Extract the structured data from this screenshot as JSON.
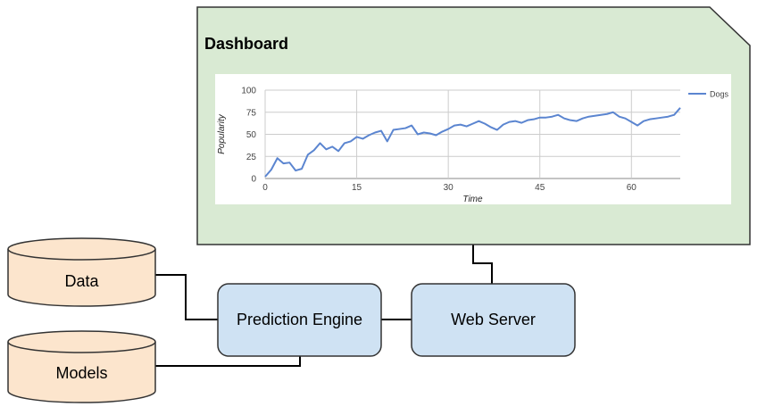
{
  "dashboard": {
    "title": "Dashboard",
    "colors": {
      "fill": "#d9ead3",
      "stroke": "#333333"
    }
  },
  "nodes": {
    "data": "Data",
    "models": "Models",
    "prediction_engine": "Prediction Engine",
    "web_server": "Web Server",
    "colors": {
      "database_fill": "#fce5cd",
      "process_fill": "#cfe2f3",
      "stroke": "#333333"
    }
  },
  "chart_data": {
    "type": "line",
    "title": "",
    "xlabel": "Time",
    "ylabel": "Popularity",
    "xlim": [
      0,
      68
    ],
    "ylim": [
      0,
      100
    ],
    "x_ticks": [
      0,
      15,
      30,
      45,
      60
    ],
    "y_ticks": [
      0,
      25,
      50,
      75,
      100
    ],
    "grid": true,
    "legend_position": "right",
    "series": [
      {
        "name": "Dogs",
        "color": "#5b85d0",
        "x": [
          0,
          1,
          2,
          3,
          4,
          5,
          6,
          7,
          8,
          9,
          10,
          11,
          12,
          13,
          14,
          15,
          16,
          17,
          18,
          19,
          20,
          21,
          22,
          23,
          24,
          25,
          26,
          27,
          28,
          29,
          30,
          31,
          32,
          33,
          34,
          35,
          36,
          37,
          38,
          39,
          40,
          41,
          42,
          43,
          44,
          45,
          46,
          47,
          48,
          49,
          50,
          51,
          52,
          53,
          54,
          55,
          56,
          57,
          58,
          59,
          60,
          61,
          62,
          63,
          64,
          65,
          66,
          67,
          68
        ],
        "values": [
          2,
          10,
          23,
          17,
          18,
          9,
          11,
          27,
          32,
          40,
          33,
          36,
          31,
          40,
          42,
          47,
          45,
          49,
          52,
          54,
          42,
          55,
          56,
          57,
          60,
          50,
          52,
          51,
          49,
          53,
          56,
          60,
          61,
          59,
          62,
          65,
          62,
          58,
          55,
          61,
          64,
          65,
          63,
          66,
          67,
          69,
          69,
          70,
          72,
          68,
          66,
          65,
          68,
          70,
          71,
          72,
          73,
          75,
          70,
          68,
          64,
          60,
          65,
          67,
          68,
          69,
          70,
          72,
          80
        ]
      }
    ]
  }
}
